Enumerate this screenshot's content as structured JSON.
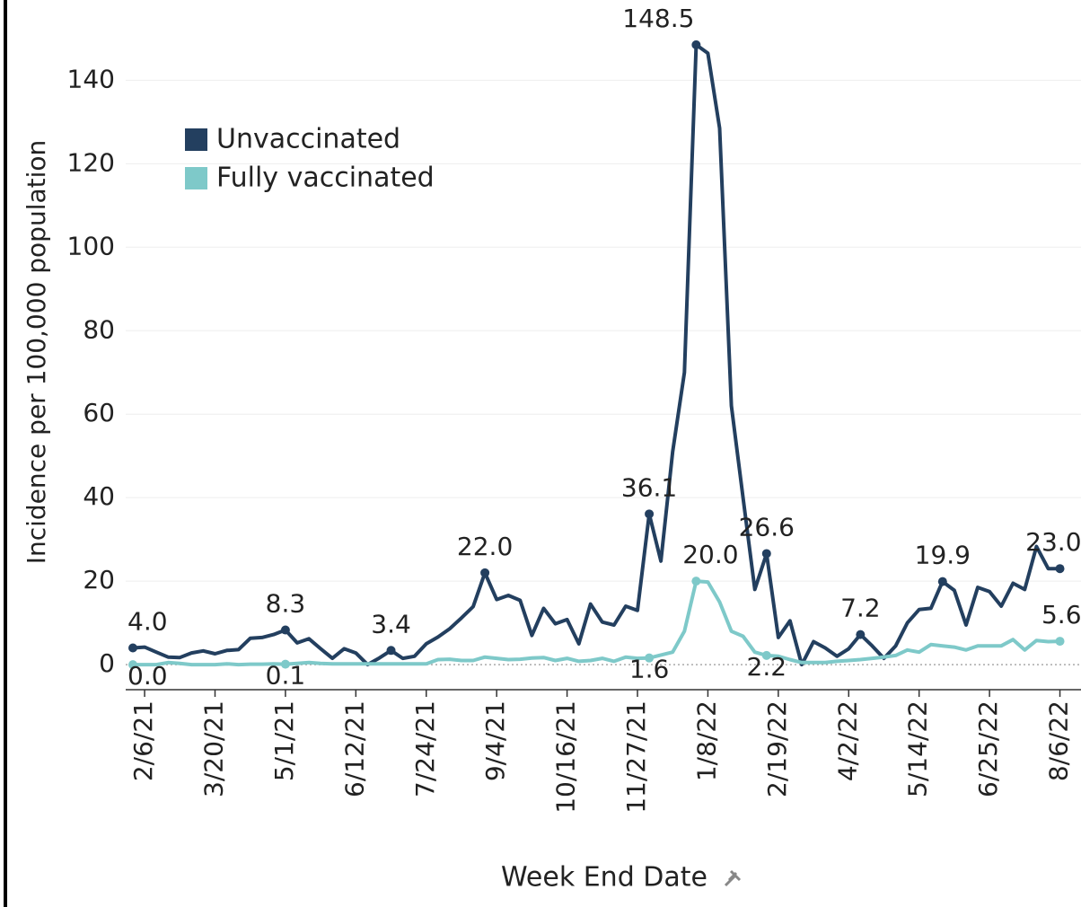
{
  "chart_data": {
    "type": "line",
    "x_label": "Week End Date",
    "y_label": "Incidence per 100,000 population",
    "categories": [
      null,
      "2/6/21",
      null,
      null,
      null,
      null,
      null,
      "3/20/21",
      null,
      null,
      null,
      null,
      null,
      "5/1/21",
      null,
      null,
      null,
      null,
      null,
      "6/12/21",
      null,
      null,
      null,
      null,
      null,
      "7/24/21",
      null,
      null,
      null,
      null,
      null,
      "9/4/21",
      null,
      null,
      null,
      null,
      null,
      "10/16/21",
      null,
      null,
      null,
      null,
      null,
      "11/27/21",
      null,
      null,
      null,
      null,
      null,
      "1/8/22",
      null,
      null,
      null,
      null,
      null,
      "2/19/22",
      null,
      null,
      null,
      null,
      null,
      "4/2/22",
      null,
      null,
      null,
      null,
      null,
      "5/14/22",
      null,
      null,
      null,
      null,
      null,
      "6/25/22",
      null,
      null,
      null,
      null,
      null,
      "8/6/22"
    ],
    "series": [
      {
        "name": "Unvaccinated",
        "color": "#233f5f",
        "values": [
          4.0,
          4.2,
          3.0,
          1.8,
          1.7,
          2.8,
          3.3,
          2.6,
          3.4,
          3.6,
          6.3,
          6.5,
          7.2,
          8.3,
          5.2,
          6.2,
          3.8,
          1.5,
          3.8,
          2.8,
          0.0,
          1.6,
          3.4,
          1.5,
          2.0,
          5.0,
          6.6,
          8.6,
          11.2,
          13.9,
          22.0,
          15.6,
          16.6,
          15.4,
          7.0,
          13.5,
          9.8,
          10.8,
          5.0,
          14.5,
          10.2,
          9.5,
          14.0,
          13.0,
          36.1,
          24.8,
          51,
          70,
          148.5,
          146.5,
          128.5,
          62,
          40,
          18,
          26.6,
          6.5,
          10.5,
          0.0,
          5.5,
          4,
          2,
          3.8,
          7.2,
          4.5,
          1.5,
          4.5,
          10.0,
          13.2,
          13.5,
          19.9,
          17.8,
          9.5,
          18.5,
          17.5,
          14.0,
          19.5,
          18.0,
          28.3,
          23.0,
          23.0
        ],
        "value_labels": [
          "4.0",
          null,
          null,
          null,
          null,
          null,
          null,
          null,
          null,
          null,
          null,
          null,
          null,
          "8.3",
          null,
          null,
          null,
          null,
          null,
          null,
          null,
          null,
          "3.4",
          null,
          null,
          null,
          null,
          null,
          null,
          null,
          "22.0",
          null,
          null,
          null,
          null,
          null,
          null,
          null,
          null,
          null,
          null,
          null,
          null,
          null,
          "36.1",
          null,
          null,
          null,
          "148.5",
          null,
          null,
          null,
          null,
          null,
          "26.6",
          null,
          null,
          null,
          null,
          null,
          null,
          null,
          "7.2",
          null,
          null,
          null,
          null,
          null,
          null,
          "19.9",
          null,
          null,
          null,
          null,
          null,
          null,
          null,
          null,
          null,
          "23.0"
        ]
      },
      {
        "name": "Fully vaccinated",
        "color": "#7ec9c9",
        "values": [
          0.0,
          0.0,
          0.0,
          0.5,
          0.3,
          0.0,
          0.0,
          0.0,
          0.2,
          0.0,
          0.1,
          0.1,
          0.2,
          0.1,
          0.3,
          0.5,
          0.3,
          0.2,
          0.2,
          0.2,
          0.2,
          0.2,
          0.2,
          0.2,
          0.2,
          0.2,
          1.2,
          1.3,
          1.0,
          1.0,
          1.8,
          1.5,
          1.2,
          1.3,
          1.6,
          1.7,
          1.0,
          1.5,
          0.8,
          1.0,
          1.5,
          0.8,
          1.8,
          1.5,
          1.6,
          2.3,
          3.0,
          8.0,
          20.0,
          19.8,
          15,
          8,
          6.8,
          3.0,
          2.2,
          2.0,
          1.2,
          0.5,
          0.5,
          0.5,
          0.8,
          1.0,
          1.2,
          1.5,
          1.8,
          2.2,
          3.5,
          3.0,
          4.8,
          4.5,
          4.2,
          3.5,
          4.5,
          4.5,
          4.5,
          6.0,
          3.5,
          5.8,
          5.5,
          5.6
        ],
        "value_labels": [
          "0.0",
          null,
          null,
          null,
          null,
          null,
          null,
          null,
          null,
          null,
          null,
          null,
          null,
          "0.1",
          null,
          null,
          null,
          null,
          null,
          null,
          null,
          null,
          null,
          null,
          null,
          null,
          null,
          null,
          null,
          null,
          null,
          null,
          null,
          null,
          null,
          null,
          null,
          null,
          null,
          null,
          null,
          null,
          null,
          null,
          "1.6",
          null,
          null,
          null,
          "20.0",
          null,
          null,
          null,
          null,
          null,
          "2.2",
          null,
          null,
          null,
          null,
          null,
          null,
          null,
          null,
          null,
          null,
          null,
          null,
          null,
          null,
          null,
          null,
          null,
          null,
          null,
          null,
          null,
          null,
          null,
          null,
          "5.6"
        ]
      }
    ],
    "ylim": [
      -6,
      156
    ],
    "yticks": [
      0,
      20,
      40,
      60,
      80,
      100,
      120,
      140
    ],
    "grid": true,
    "legend": "upper left"
  }
}
